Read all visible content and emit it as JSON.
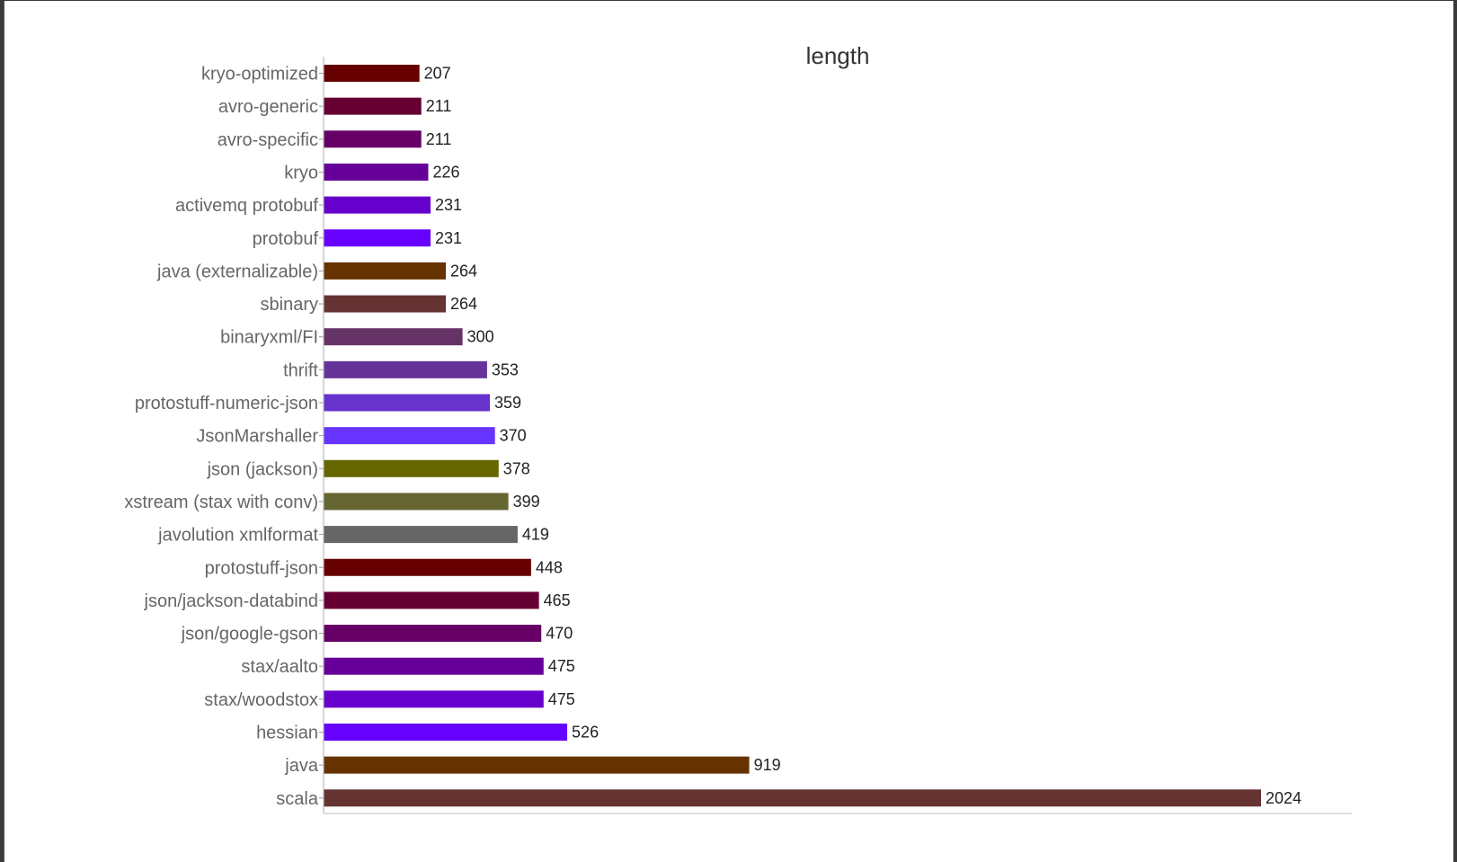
{
  "chart_data": {
    "type": "bar",
    "orientation": "horizontal",
    "title": "length",
    "xlabel": "",
    "ylabel": "",
    "xlim": [
      0,
      2200
    ],
    "grid": false,
    "legend": "none",
    "categories": [
      "kryo-optimized",
      "avro-generic",
      "avro-specific",
      "kryo",
      "activemq protobuf",
      "protobuf",
      "java (externalizable)",
      "sbinary",
      "binaryxml/FI",
      "thrift",
      "protostuff-numeric-json",
      "JsonMarshaller",
      "json (jackson)",
      "xstream (stax with conv)",
      "javolution xmlformat",
      "protostuff-json",
      "json/jackson-databind",
      "json/google-gson",
      "stax/aalto",
      "stax/woodstox",
      "hessian",
      "java",
      "scala"
    ],
    "values": [
      207,
      211,
      211,
      226,
      231,
      231,
      264,
      264,
      300,
      353,
      359,
      370,
      378,
      399,
      419,
      448,
      465,
      470,
      475,
      475,
      526,
      919,
      2024
    ],
    "value_labels": [
      "207",
      "211",
      "211",
      "226",
      "231",
      "231",
      "264",
      "264",
      "300",
      "353",
      "359",
      "370",
      "378",
      "399",
      "419",
      "448",
      "465",
      "470",
      "475",
      "475",
      "526",
      "919",
      "2024"
    ],
    "colors": [
      "#660000",
      "#660033",
      "#660066",
      "#660099",
      "#6600cc",
      "#6600ff",
      "#663300",
      "#663333",
      "#663366",
      "#663399",
      "#6633cc",
      "#6633ff",
      "#666600",
      "#666633",
      "#666666",
      "#660000",
      "#660033",
      "#660066",
      "#660099",
      "#6600cc",
      "#6600ff",
      "#663300",
      "#663333"
    ]
  }
}
